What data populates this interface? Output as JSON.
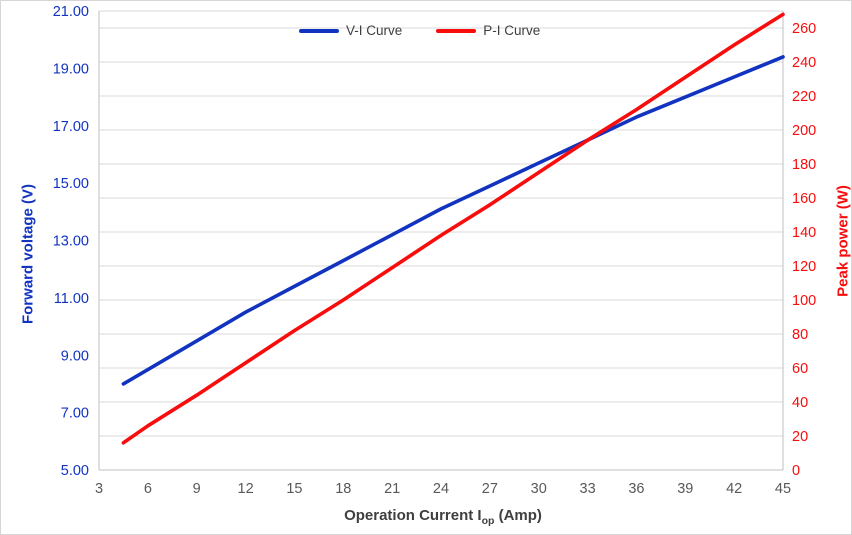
{
  "chart_data": {
    "type": "line",
    "title": "",
    "x": [
      4.5,
      6,
      9,
      12,
      15,
      18,
      21,
      24,
      27,
      30,
      33,
      36,
      39,
      42,
      45
    ],
    "series": [
      {
        "name": "V-I Curve",
        "axis": "left",
        "color": "#1133bf",
        "values": [
          8.0,
          8.5,
          9.5,
          10.5,
          11.4,
          12.3,
          13.2,
          14.1,
          14.9,
          15.7,
          16.5,
          17.3,
          18.0,
          18.7,
          19.4
        ]
      },
      {
        "name": "P-I Curve",
        "axis": "right",
        "color": "#f80c0c",
        "values": [
          16,
          26,
          44,
          63,
          82,
          100,
          119,
          138,
          156,
          175,
          194,
          212,
          231,
          250,
          268
        ]
      }
    ],
    "x_axis": {
      "title_main": "Operation Current I",
      "title_sub": "op",
      "title_suffix": " (Amp)",
      "min": 3,
      "max": 45,
      "tick_step": 3,
      "tick_color": "#595959"
    },
    "left_axis": {
      "title": "Forward voltage (V)",
      "min": 5,
      "max": 21,
      "label_step": 2,
      "decimals": 2,
      "color": "#1133bf",
      "tick_labels": [
        "21.00",
        "19.00",
        "17.00",
        "15.00",
        "13.00",
        "11.00",
        "9.00",
        "7.00",
        "5.00"
      ]
    },
    "right_axis": {
      "title": "Peak power (W)",
      "min": 0,
      "max": 270,
      "label_step": 20,
      "label_max": 260,
      "decimals": 0,
      "color": "#f80c0c",
      "tick_labels": [
        "260",
        "240",
        "220",
        "200",
        "180",
        "160",
        "140",
        "120",
        "100",
        "80",
        "60",
        "40",
        "20",
        "0"
      ]
    },
    "x_tick_labels": [
      "3",
      "6",
      "9",
      "12",
      "15",
      "18",
      "21",
      "24",
      "27",
      "30",
      "33",
      "36",
      "39",
      "42",
      "45"
    ],
    "grid": {
      "horizontal_step_w": 20,
      "color": "#d9d9d9",
      "axis_line_color": "#bfbfbf",
      "vertical": false
    },
    "legend": {
      "position": "top-center"
    }
  }
}
